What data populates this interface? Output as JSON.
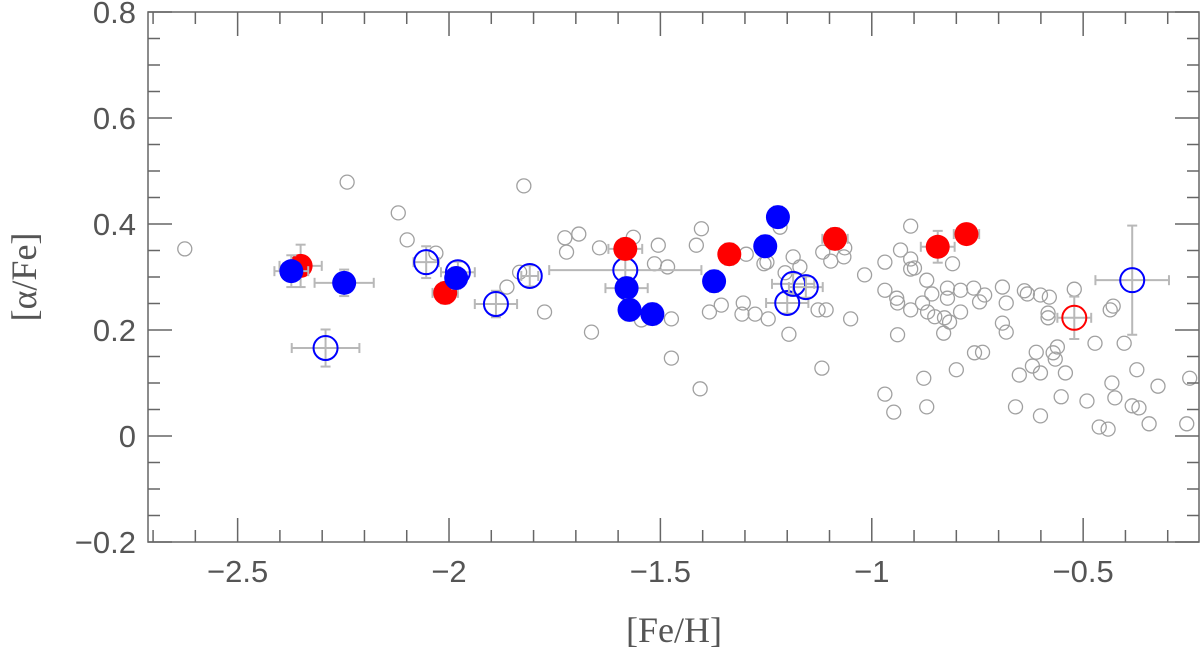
{
  "chart_data": {
    "type": "scatter",
    "title": "",
    "xlabel": "[Fe/H]",
    "ylabel": "[α/Fe]",
    "xlim": [
      -2.712,
      -0.226
    ],
    "ylim": [
      -0.2,
      0.8
    ],
    "x_ticks": [
      {
        "value": -2.5,
        "label": "−2.5"
      },
      {
        "value": -2.0,
        "label": "−2"
      },
      {
        "value": -1.5,
        "label": "−1.5"
      },
      {
        "value": -1.0,
        "label": "−1"
      },
      {
        "value": -0.5,
        "label": "−0.5"
      }
    ],
    "y_ticks": [
      {
        "value": -0.2,
        "label": "−0.2"
      },
      {
        "value": 0.0,
        "label": "0"
      },
      {
        "value": 0.2,
        "label": "0.2"
      },
      {
        "value": 0.4,
        "label": "0.4"
      },
      {
        "value": 0.6,
        "label": "0.6"
      },
      {
        "value": 0.8,
        "label": "0.8"
      }
    ],
    "x_minor_step": 0.1,
    "y_minor_step": 0.05,
    "grid": false,
    "colors": {
      "grey": "#a0a0a0",
      "red": "#ff0000",
      "blue": "#0000ff",
      "errorbar": "#b8b8b8",
      "axis": "#666666"
    },
    "series": [
      {
        "style": "grey-open",
        "points": [
          [
            -2.625,
            0.353
          ],
          [
            -2.241,
            0.479
          ],
          [
            -2.12,
            0.421
          ],
          [
            -2.099,
            0.37
          ],
          [
            -2.031,
            0.345
          ],
          [
            -1.823,
            0.472
          ],
          [
            -1.833,
            0.309
          ],
          [
            -1.863,
            0.281
          ],
          [
            -1.774,
            0.234
          ],
          [
            -1.726,
            0.374
          ],
          [
            -1.722,
            0.347
          ],
          [
            -1.693,
            0.381
          ],
          [
            -1.644,
            0.355
          ],
          [
            -1.564,
            0.375
          ],
          [
            -1.505,
            0.36
          ],
          [
            -1.514,
            0.325
          ],
          [
            -1.483,
            0.319
          ],
          [
            -1.403,
            0.391
          ],
          [
            -1.415,
            0.36
          ],
          [
            -1.663,
            0.196
          ],
          [
            -1.474,
            0.221
          ],
          [
            -1.545,
            0.219
          ],
          [
            -1.384,
            0.234
          ],
          [
            -1.356,
            0.247
          ],
          [
            -1.304,
            0.251
          ],
          [
            -1.307,
            0.23
          ],
          [
            -1.276,
            0.23
          ],
          [
            -1.245,
            0.221
          ],
          [
            -1.297,
            0.343
          ],
          [
            -1.255,
            0.325
          ],
          [
            -1.248,
            0.328
          ],
          [
            -1.186,
            0.338
          ],
          [
            -1.17,
            0.319
          ],
          [
            -1.205,
            0.308
          ],
          [
            -1.196,
            0.192
          ],
          [
            -1.127,
            0.238
          ],
          [
            -1.108,
            0.238
          ],
          [
            -1.05,
            0.221
          ],
          [
            -1.017,
            0.304
          ],
          [
            -1.118,
            0.128
          ],
          [
            -1.474,
            0.147
          ],
          [
            -1.406,
            0.089
          ],
          [
            -1.116,
            0.347
          ],
          [
            -1.097,
            0.33
          ],
          [
            -1.066,
            0.338
          ],
          [
            -1.064,
            0.355
          ],
          [
            -1.217,
            0.394
          ],
          [
            -0.908,
            0.396
          ],
          [
            -0.932,
            0.351
          ],
          [
            -0.908,
            0.334
          ],
          [
            -0.908,
            0.315
          ],
          [
            -0.899,
            0.317
          ],
          [
            -0.969,
            0.328
          ],
          [
            -0.809,
            0.325
          ],
          [
            -0.87,
            0.294
          ],
          [
            -0.969,
            0.275
          ],
          [
            -0.941,
            0.26
          ],
          [
            -0.939,
            0.251
          ],
          [
            -0.88,
            0.251
          ],
          [
            -0.858,
            0.268
          ],
          [
            -0.821,
            0.279
          ],
          [
            -0.821,
            0.26
          ],
          [
            -0.79,
            0.275
          ],
          [
            -0.759,
            0.279
          ],
          [
            -0.733,
            0.266
          ],
          [
            -0.745,
            0.253
          ],
          [
            -0.691,
            0.281
          ],
          [
            -0.682,
            0.251
          ],
          [
            -0.639,
            0.274
          ],
          [
            -0.632,
            0.268
          ],
          [
            -0.601,
            0.266
          ],
          [
            -0.58,
            0.262
          ],
          [
            -0.521,
            0.277
          ],
          [
            -0.583,
            0.232
          ],
          [
            -0.583,
            0.223
          ],
          [
            -0.908,
            0.238
          ],
          [
            -0.868,
            0.234
          ],
          [
            -0.851,
            0.225
          ],
          [
            -0.828,
            0.223
          ],
          [
            -0.816,
            0.215
          ],
          [
            -0.79,
            0.234
          ],
          [
            -0.939,
            0.191
          ],
          [
            -0.83,
            0.194
          ],
          [
            -0.691,
            0.213
          ],
          [
            -0.682,
            0.196
          ],
          [
            -0.429,
            0.245
          ],
          [
            -0.436,
            0.238
          ],
          [
            -0.757,
            0.157
          ],
          [
            -0.738,
            0.158
          ],
          [
            -0.8,
            0.125
          ],
          [
            -0.877,
            0.109
          ],
          [
            -0.969,
            0.079
          ],
          [
            -0.948,
            0.045
          ],
          [
            -0.87,
            0.055
          ],
          [
            -0.611,
            0.158
          ],
          [
            -0.571,
            0.157
          ],
          [
            -0.561,
            0.168
          ],
          [
            -0.566,
            0.145
          ],
          [
            -0.62,
            0.132
          ],
          [
            -0.601,
            0.119
          ],
          [
            -0.651,
            0.115
          ],
          [
            -0.542,
            0.119
          ],
          [
            -0.552,
            0.074
          ],
          [
            -0.491,
            0.066
          ],
          [
            -0.66,
            0.055
          ],
          [
            -0.601,
            0.038
          ],
          [
            -0.472,
            0.175
          ],
          [
            -0.403,
            0.175
          ],
          [
            -0.373,
            0.125
          ],
          [
            -0.432,
            0.1
          ],
          [
            -0.425,
            0.072
          ],
          [
            -0.384,
            0.057
          ],
          [
            -0.368,
            0.053
          ],
          [
            -0.323,
            0.094
          ],
          [
            -0.462,
            0.017
          ],
          [
            -0.441,
            0.013
          ],
          [
            -0.344,
            0.023
          ],
          [
            -0.248,
            0.109
          ],
          [
            -0.255,
            0.023
          ]
        ]
      },
      {
        "style": "blue-open",
        "points": [
          {
            "x": -2.292,
            "y": 0.166,
            "xerr": 0.08,
            "yerr": 0.035
          },
          {
            "x": -2.054,
            "y": 0.328,
            "xerr": 0.03,
            "yerr": 0.03
          },
          {
            "x": -1.979,
            "y": 0.309,
            "xerr": 0.04,
            "yerr": 0.02
          },
          {
            "x": -1.889,
            "y": 0.249,
            "xerr": 0.05,
            "yerr": 0.025
          },
          {
            "x": -1.809,
            "y": 0.302,
            "xerr": 0.02,
            "yerr": 0.02
          },
          {
            "x": -1.583,
            "y": 0.313,
            "xerr": 0.18,
            "yerr": 0.02
          },
          {
            "x": -1.2,
            "y": 0.251,
            "xerr": 0.05,
            "yerr": 0.02
          },
          {
            "x": -1.186,
            "y": 0.287,
            "xerr": 0.05,
            "yerr": 0.02
          },
          {
            "x": -1.156,
            "y": 0.281,
            "xerr": 0.04,
            "yerr": 0.02
          },
          {
            "x": -0.384,
            "y": 0.294,
            "xerr": 0.087,
            "yerr": 0.103
          }
        ]
      },
      {
        "style": "red-open",
        "points": [
          {
            "x": -0.521,
            "y": 0.223,
            "xerr": 0.04,
            "yerr": 0.04
          }
        ]
      },
      {
        "style": "red-filled",
        "points": [
          {
            "x": -2.351,
            "y": 0.321,
            "xerr": 0.05,
            "yerr": 0.04
          },
          {
            "x": -2.009,
            "y": 0.27,
            "xerr": 0.03,
            "yerr": 0.02
          },
          {
            "x": -1.583,
            "y": 0.353,
            "xerr": 0.04,
            "yerr": 0.02
          },
          {
            "x": -1.337,
            "y": 0.343,
            "xerr": 0.02,
            "yerr": 0.02
          },
          {
            "x": -1.087,
            "y": 0.372,
            "xerr": 0.03,
            "yerr": 0.02
          },
          {
            "x": -0.844,
            "y": 0.357,
            "xerr": 0.04,
            "yerr": 0.03
          },
          {
            "x": -0.776,
            "y": 0.381,
            "xerr": 0.03,
            "yerr": 0.015
          }
        ]
      },
      {
        "style": "blue-filled",
        "points": [
          {
            "x": -2.373,
            "y": 0.311,
            "xerr": 0.04,
            "yerr": 0.03
          },
          {
            "x": -2.248,
            "y": 0.289,
            "xerr": 0.07,
            "yerr": 0.025
          },
          {
            "x": -1.983,
            "y": 0.298,
            "xerr": 0.02,
            "yerr": 0.02
          },
          {
            "x": -1.58,
            "y": 0.279,
            "xerr": 0.05,
            "yerr": 0.02
          },
          {
            "x": -1.573,
            "y": 0.238,
            "xerr": 0.02,
            "yerr": 0.02
          },
          {
            "x": -1.519,
            "y": 0.23,
            "xerr": 0.02,
            "yerr": 0.02
          },
          {
            "x": -1.373,
            "y": 0.292,
            "xerr": 0.02,
            "yerr": 0.02
          },
          {
            "x": -1.252,
            "y": 0.358,
            "xerr": 0.02,
            "yerr": 0.02
          },
          {
            "x": -1.222,
            "y": 0.413,
            "xerr": 0.02,
            "yerr": 0.02
          }
        ]
      }
    ]
  }
}
